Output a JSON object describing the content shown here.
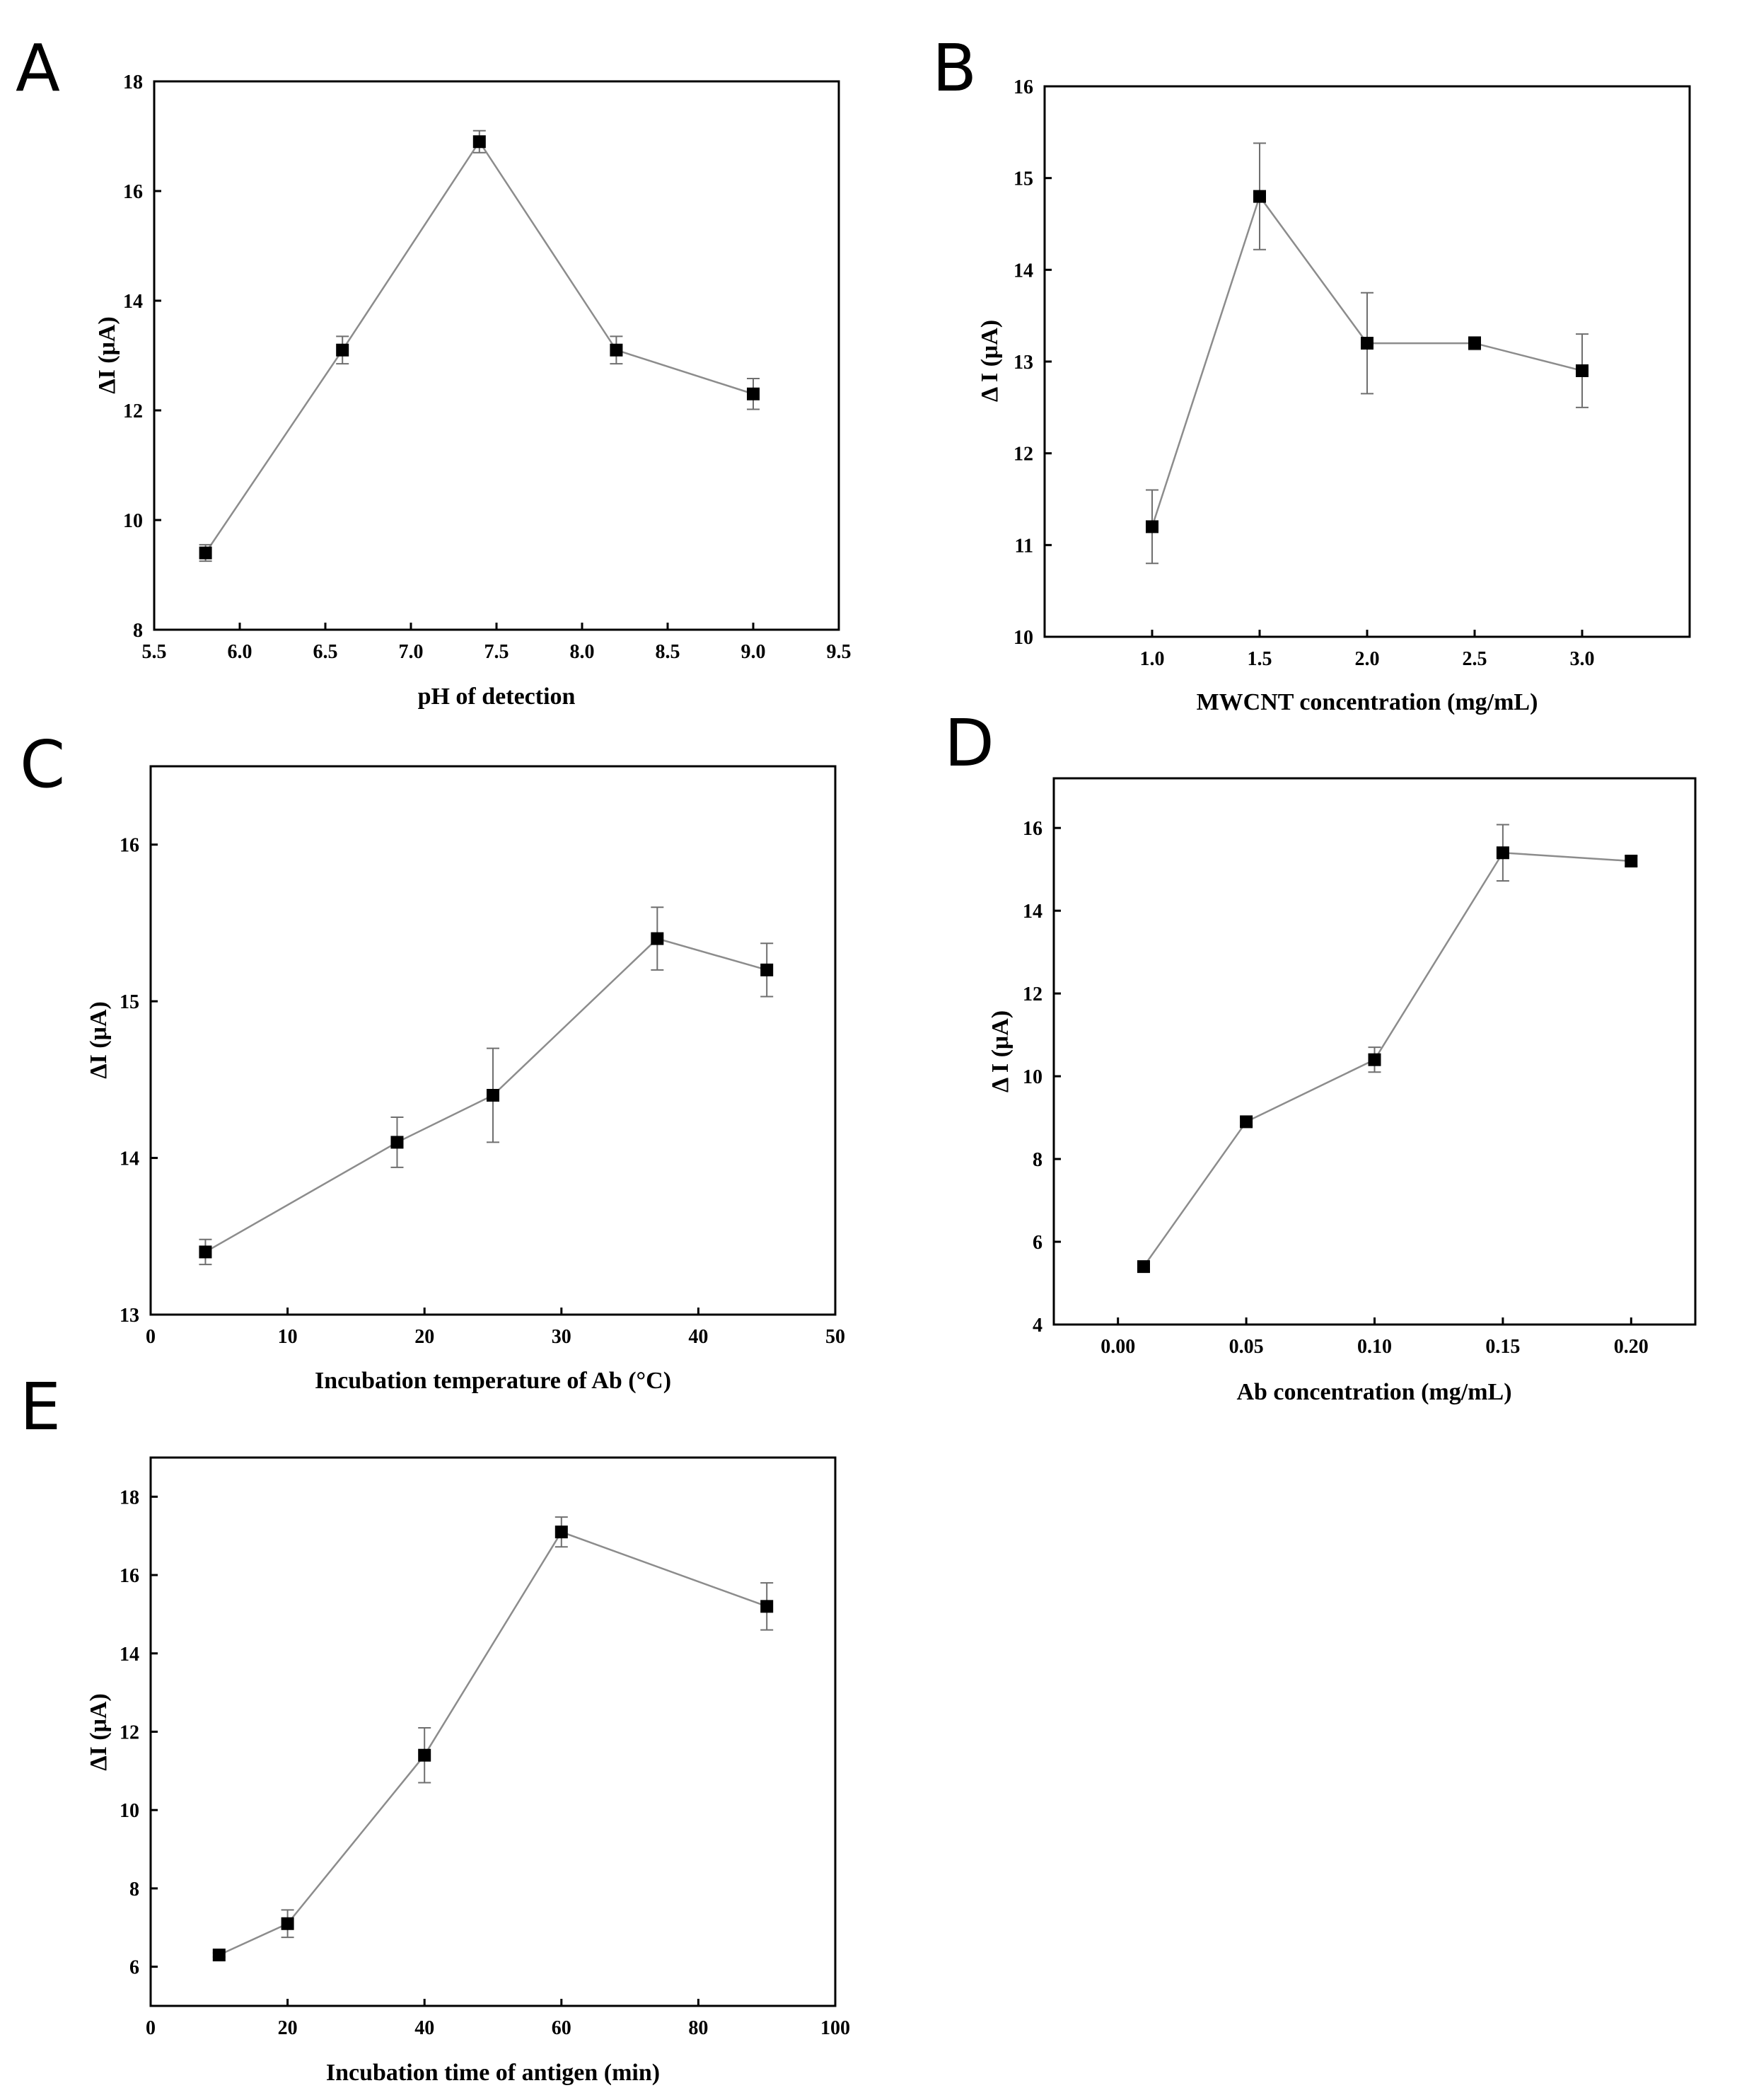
{
  "chart_data": [
    {
      "id": "A",
      "panel_label": "A",
      "type": "line",
      "title": "",
      "xlabel": "pH of detection",
      "ylabel": "ΔI (μA)",
      "xlim": [
        5.5,
        9.5
      ],
      "ylim": [
        8,
        18
      ],
      "xticks": [
        5.5,
        6.0,
        6.5,
        7.0,
        7.5,
        8.0,
        8.5,
        9.0,
        9.5
      ],
      "xtick_labels": [
        "5.5",
        "6.0",
        "6.5",
        "7.0",
        "7.5",
        "8.0",
        "8.5",
        "9.0",
        "9.5"
      ],
      "yticks": [
        8,
        10,
        12,
        14,
        16,
        18
      ],
      "ytick_labels": [
        "8",
        "10",
        "12",
        "14",
        "16",
        "18"
      ],
      "x": [
        5.8,
        6.6,
        7.4,
        8.2,
        9.0
      ],
      "y": [
        9.4,
        13.1,
        16.9,
        13.1,
        12.3
      ],
      "error": [
        0.15,
        0.25,
        0.2,
        0.25,
        0.28
      ],
      "grid": false,
      "legend": "none"
    },
    {
      "id": "B",
      "panel_label": "B",
      "type": "line",
      "title": "",
      "xlabel": "MWCNT   concentration (mg/mL)",
      "ylabel": "Δ I (μA)",
      "xlim": [
        0.5,
        3.5
      ],
      "ylim": [
        10,
        16
      ],
      "xticks": [
        1.0,
        1.5,
        2.0,
        2.5,
        3.0
      ],
      "xtick_labels": [
        "1.0",
        "1.5",
        "2.0",
        "2.5",
        "3.0"
      ],
      "yticks": [
        10,
        11,
        12,
        13,
        14,
        15,
        16
      ],
      "ytick_labels": [
        "10",
        "11",
        "12",
        "13",
        "14",
        "15",
        "16"
      ],
      "x": [
        1.0,
        1.5,
        2.0,
        2.5,
        3.0
      ],
      "y": [
        11.2,
        14.8,
        13.2,
        13.2,
        12.9
      ],
      "error": [
        0.4,
        0.58,
        0.55,
        0.07,
        0.4
      ],
      "grid": false,
      "legend": "none"
    },
    {
      "id": "C",
      "panel_label": "C",
      "type": "line",
      "title": "",
      "xlabel": "Incubation temperature of Ab (°C)",
      "ylabel": "ΔI (μA)",
      "xlim": [
        0,
        50
      ],
      "ylim": [
        13,
        16.5
      ],
      "xticks": [
        0,
        10,
        20,
        30,
        40,
        50
      ],
      "xtick_labels": [
        "0",
        "10",
        "20",
        "30",
        "40",
        "50"
      ],
      "yticks": [
        13,
        14,
        15,
        16
      ],
      "ytick_labels": [
        "13",
        "14",
        "15",
        "16"
      ],
      "x": [
        4,
        18,
        25,
        37,
        45
      ],
      "y": [
        13.4,
        14.1,
        14.4,
        15.4,
        15.2
      ],
      "error": [
        0.08,
        0.16,
        0.3,
        0.2,
        0.17
      ],
      "grid": false,
      "legend": "none"
    },
    {
      "id": "D",
      "panel_label": "D",
      "type": "line",
      "title": "",
      "xlabel": "Ab concentration (mg/mL)",
      "ylabel": "Δ I (μA)",
      "xlim": [
        -0.025,
        0.225
      ],
      "ylim": [
        4,
        17.2
      ],
      "xticks": [
        0.0,
        0.05,
        0.1,
        0.15,
        0.2
      ],
      "xtick_labels": [
        "0.00",
        "0.05",
        "0.10",
        "0.15",
        "0.20"
      ],
      "yticks": [
        4,
        6,
        8,
        10,
        12,
        14,
        16
      ],
      "ytick_labels": [
        "4",
        "6",
        "8",
        "10",
        "12",
        "14",
        "16"
      ],
      "x": [
        0.01,
        0.05,
        0.1,
        0.15,
        0.2
      ],
      "y": [
        5.4,
        8.9,
        10.4,
        15.4,
        15.2
      ],
      "error": [
        0.05,
        0.1,
        0.3,
        0.68,
        0.12
      ],
      "grid": false,
      "legend": "none"
    },
    {
      "id": "E",
      "panel_label": "E",
      "type": "line",
      "title": "",
      "xlabel": "Incubation time of antigen (min)",
      "ylabel": "ΔI (μA)",
      "xlim": [
        0,
        100
      ],
      "ylim": [
        5,
        19
      ],
      "xticks": [
        0,
        20,
        40,
        60,
        80,
        100
      ],
      "xtick_labels": [
        "0",
        "20",
        "40",
        "60",
        "80",
        "100"
      ],
      "yticks": [
        6,
        8,
        10,
        12,
        14,
        16,
        18
      ],
      "ytick_labels": [
        "6",
        "8",
        "10",
        "12",
        "14",
        "16",
        "18"
      ],
      "x": [
        10,
        20,
        40,
        60,
        90
      ],
      "y": [
        6.3,
        7.1,
        11.4,
        17.1,
        15.2
      ],
      "error": [
        0.05,
        0.35,
        0.7,
        0.38,
        0.6
      ],
      "grid": false,
      "legend": "none"
    }
  ]
}
